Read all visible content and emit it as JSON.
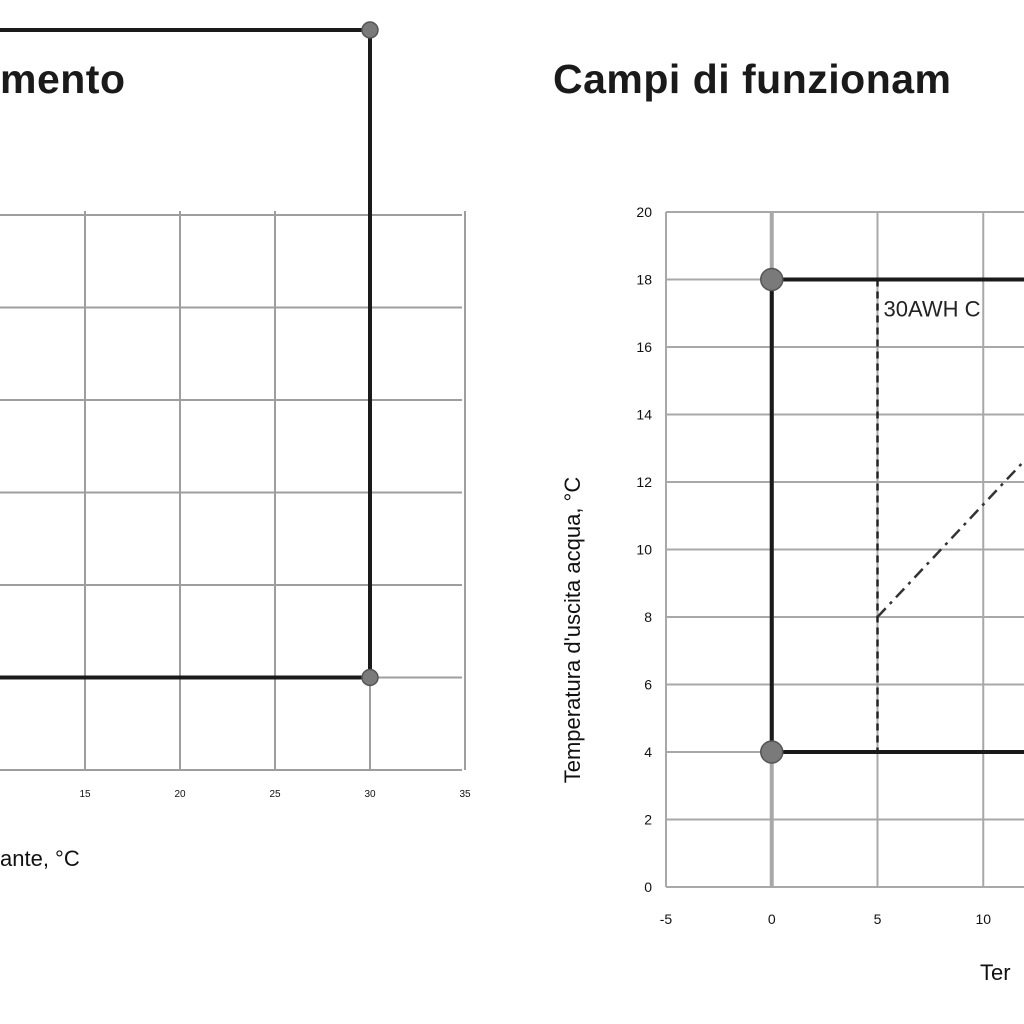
{
  "chart_data": [
    {
      "type": "line",
      "title": "mento",
      "xlabel": "ante, °C",
      "ylabel": "",
      "xlim": [
        10,
        35
      ],
      "ylim": [
        4,
        22
      ],
      "x_ticks": [
        "15",
        "20",
        "25",
        "30",
        "35"
      ],
      "grid": true,
      "series": [
        {
          "values": [
            {
              "x": 10,
              "y": 20
            },
            {
              "x": 30,
              "y": 20
            },
            {
              "x": 30,
              "y": 6
            },
            {
              "x": 10,
              "y": 6
            }
          ]
        }
      ],
      "markers": [
        {
          "x": 30,
          "y": 20
        },
        {
          "x": 30,
          "y": 6
        }
      ]
    },
    {
      "type": "line",
      "title": "Campi di funzionam",
      "xlabel": "Ter",
      "ylabel": "Temperatura d'uscita acqua, °C",
      "xlim": [
        -5,
        12.5
      ],
      "ylim": [
        0,
        20
      ],
      "x_ticks": [
        "-5",
        "0",
        "5",
        "10"
      ],
      "y_ticks": [
        "0",
        "2",
        "4",
        "6",
        "8",
        "10",
        "12",
        "14",
        "16",
        "18",
        "20"
      ],
      "grid": true,
      "series": [
        {
          "values": [
            {
              "x": 12.5,
              "y": 18
            },
            {
              "x": 0,
              "y": 18
            },
            {
              "x": 0,
              "y": 4
            },
            {
              "x": 12.5,
              "y": 4
            }
          ]
        }
      ],
      "dashed_series": [
        {
          "values": [
            {
              "x": 5,
              "y": 18
            },
            {
              "x": 5,
              "y": 4
            }
          ]
        }
      ],
      "dashdot_series": [
        {
          "values": [
            {
              "x": 5,
              "y": 8
            },
            {
              "x": 12.5,
              "y": 13
            }
          ]
        }
      ],
      "markers": [
        {
          "x": 0,
          "y": 18
        },
        {
          "x": 0,
          "y": 4
        }
      ],
      "annotation": "30AWH C"
    }
  ]
}
